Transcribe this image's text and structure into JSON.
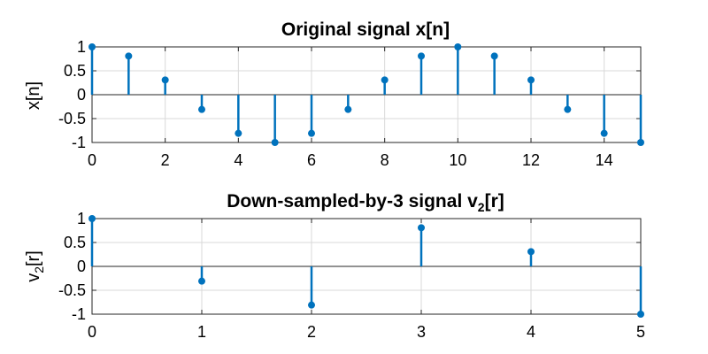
{
  "chart_data": [
    {
      "type": "stem",
      "title": "Original signal x[n]",
      "ylabel": "x[n]",
      "xlabel": "",
      "x": [
        0,
        1,
        2,
        3,
        4,
        5,
        6,
        7,
        8,
        9,
        10,
        11,
        12,
        13,
        14,
        15
      ],
      "values": [
        1,
        0.809,
        0.309,
        -0.309,
        -0.809,
        -1,
        -0.809,
        -0.309,
        0.309,
        0.809,
        1,
        0.809,
        0.309,
        -0.309,
        -0.809,
        -1
      ],
      "xlim": [
        0,
        15
      ],
      "ylim": [
        -1,
        1
      ],
      "xticks": [
        0,
        2,
        4,
        6,
        8,
        10,
        12,
        14
      ],
      "yticks": [
        1,
        0.5,
        0,
        -0.5,
        -1
      ],
      "ytick_labels": [
        "1",
        "0.5",
        "0",
        "-0.5",
        "-1"
      ],
      "grid": true,
      "color": "#0072BD"
    },
    {
      "type": "stem",
      "title_parts": {
        "before": "Down-sampled-by-3 signal v",
        "sub": "2",
        "after": "[r]"
      },
      "ylabel_parts": {
        "before": "v",
        "sub": "2",
        "after": "[r]"
      },
      "xlabel": "",
      "x": [
        0,
        1,
        2,
        3,
        4,
        5
      ],
      "values": [
        1,
        -0.309,
        -0.809,
        0.809,
        0.309,
        -1
      ],
      "xlim": [
        0,
        5
      ],
      "ylim": [
        -1,
        1
      ],
      "xticks": [
        0,
        1,
        2,
        3,
        4,
        5
      ],
      "yticks": [
        1,
        0.5,
        0,
        -0.5,
        -1
      ],
      "ytick_labels": [
        "1",
        "0.5",
        "0",
        "-0.5",
        "-1"
      ],
      "grid": true,
      "color": "#0072BD"
    }
  ]
}
